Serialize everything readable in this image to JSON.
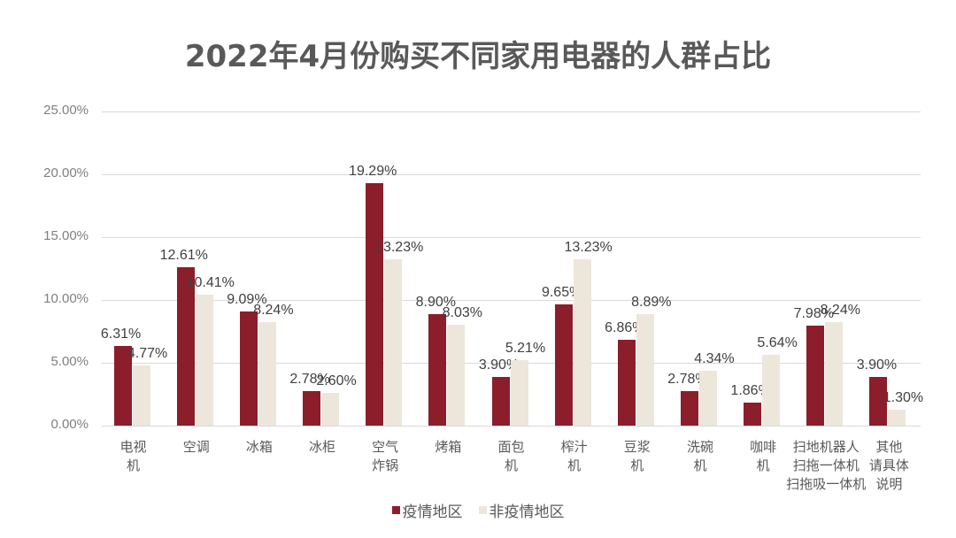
{
  "chart_data": {
    "type": "bar",
    "title": "2022年4月份购买不同家用电器的人群占比",
    "xlabel": "",
    "ylabel": "",
    "ylim": [
      0,
      25
    ],
    "yticks": [
      "0.00%",
      "5.00%",
      "10.00%",
      "15.00%",
      "20.00%",
      "25.00%"
    ],
    "grid": true,
    "legend_position": "bottom",
    "categories": [
      "电视\n机",
      "空调",
      "冰箱",
      "冰柜",
      "空气\n炸锅",
      "烤箱",
      "面包\n机",
      "榨汁\n机",
      "豆浆\n机",
      "洗碗\n机",
      "咖啡\n机",
      "扫地机器人\n扫拖一体机\n扫拖吸一体机",
      "其他\n请具体\n说明"
    ],
    "series": [
      {
        "name": "疫情地区",
        "color": "#8b1e2a",
        "values": [
          6.31,
          12.61,
          9.09,
          2.78,
          19.29,
          8.9,
          3.9,
          9.65,
          6.86,
          2.78,
          1.86,
          7.98,
          3.9
        ],
        "labels": [
          "6.31%",
          "12.61%",
          "9.09%",
          "2.78%",
          "19.29%",
          "8.90%",
          "3.90%",
          "9.65%",
          "6.86%",
          "2.78%",
          "1.86%",
          "7.98%",
          "3.90%"
        ]
      },
      {
        "name": "非疫情地区",
        "color": "#ede6da",
        "values": [
          4.77,
          10.41,
          8.24,
          2.6,
          13.23,
          8.03,
          5.21,
          13.23,
          8.89,
          4.34,
          5.64,
          8.24,
          1.3
        ],
        "labels": [
          "4.77%",
          "10.41%",
          "8.24%",
          "2.60%",
          "13.23%",
          "8.03%",
          "5.21%",
          "13.23%",
          "8.89%",
          "4.34%",
          "5.64%",
          "8.24%",
          "1.30%"
        ]
      }
    ]
  }
}
